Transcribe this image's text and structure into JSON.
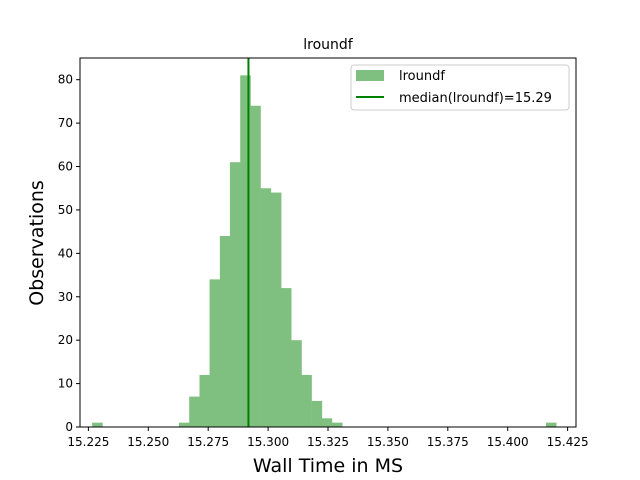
{
  "chart_data": {
    "type": "bar",
    "subtype": "histogram",
    "title": "lroundf",
    "xlabel": "Wall Time in MS",
    "ylabel": "Observations",
    "xlim": [
      15.2215,
      15.4285
    ],
    "ylim": [
      0,
      85
    ],
    "xticks": [
      "15.225",
      "15.250",
      "15.275",
      "15.300",
      "15.325",
      "15.350",
      "15.375",
      "15.400",
      "15.425"
    ],
    "yticks": [
      "0",
      "10",
      "20",
      "30",
      "40",
      "50",
      "60",
      "70",
      "80"
    ],
    "bin_width": 0.00426,
    "bins": [
      {
        "x": 15.2287,
        "count": 1
      },
      {
        "x": 15.2649,
        "count": 1
      },
      {
        "x": 15.2692,
        "count": 7
      },
      {
        "x": 15.2735,
        "count": 12
      },
      {
        "x": 15.2777,
        "count": 34
      },
      {
        "x": 15.282,
        "count": 44
      },
      {
        "x": 15.2862,
        "count": 61
      },
      {
        "x": 15.2905,
        "count": 81
      },
      {
        "x": 15.2947,
        "count": 74
      },
      {
        "x": 15.299,
        "count": 55
      },
      {
        "x": 15.3033,
        "count": 54
      },
      {
        "x": 15.3075,
        "count": 32
      },
      {
        "x": 15.3118,
        "count": 20
      },
      {
        "x": 15.316,
        "count": 12
      },
      {
        "x": 15.3203,
        "count": 6
      },
      {
        "x": 15.3245,
        "count": 2
      },
      {
        "x": 15.3288,
        "count": 1
      },
      {
        "x": 15.4181,
        "count": 1
      }
    ],
    "median": 15.2918,
    "series": [
      {
        "name": "lroundf",
        "kind": "histogram",
        "color": "#7fbf7f"
      },
      {
        "name": "median(lroundf)=15.29",
        "kind": "vline",
        "color": "#008000"
      }
    ],
    "legend_position": "top-right",
    "grid": false
  }
}
